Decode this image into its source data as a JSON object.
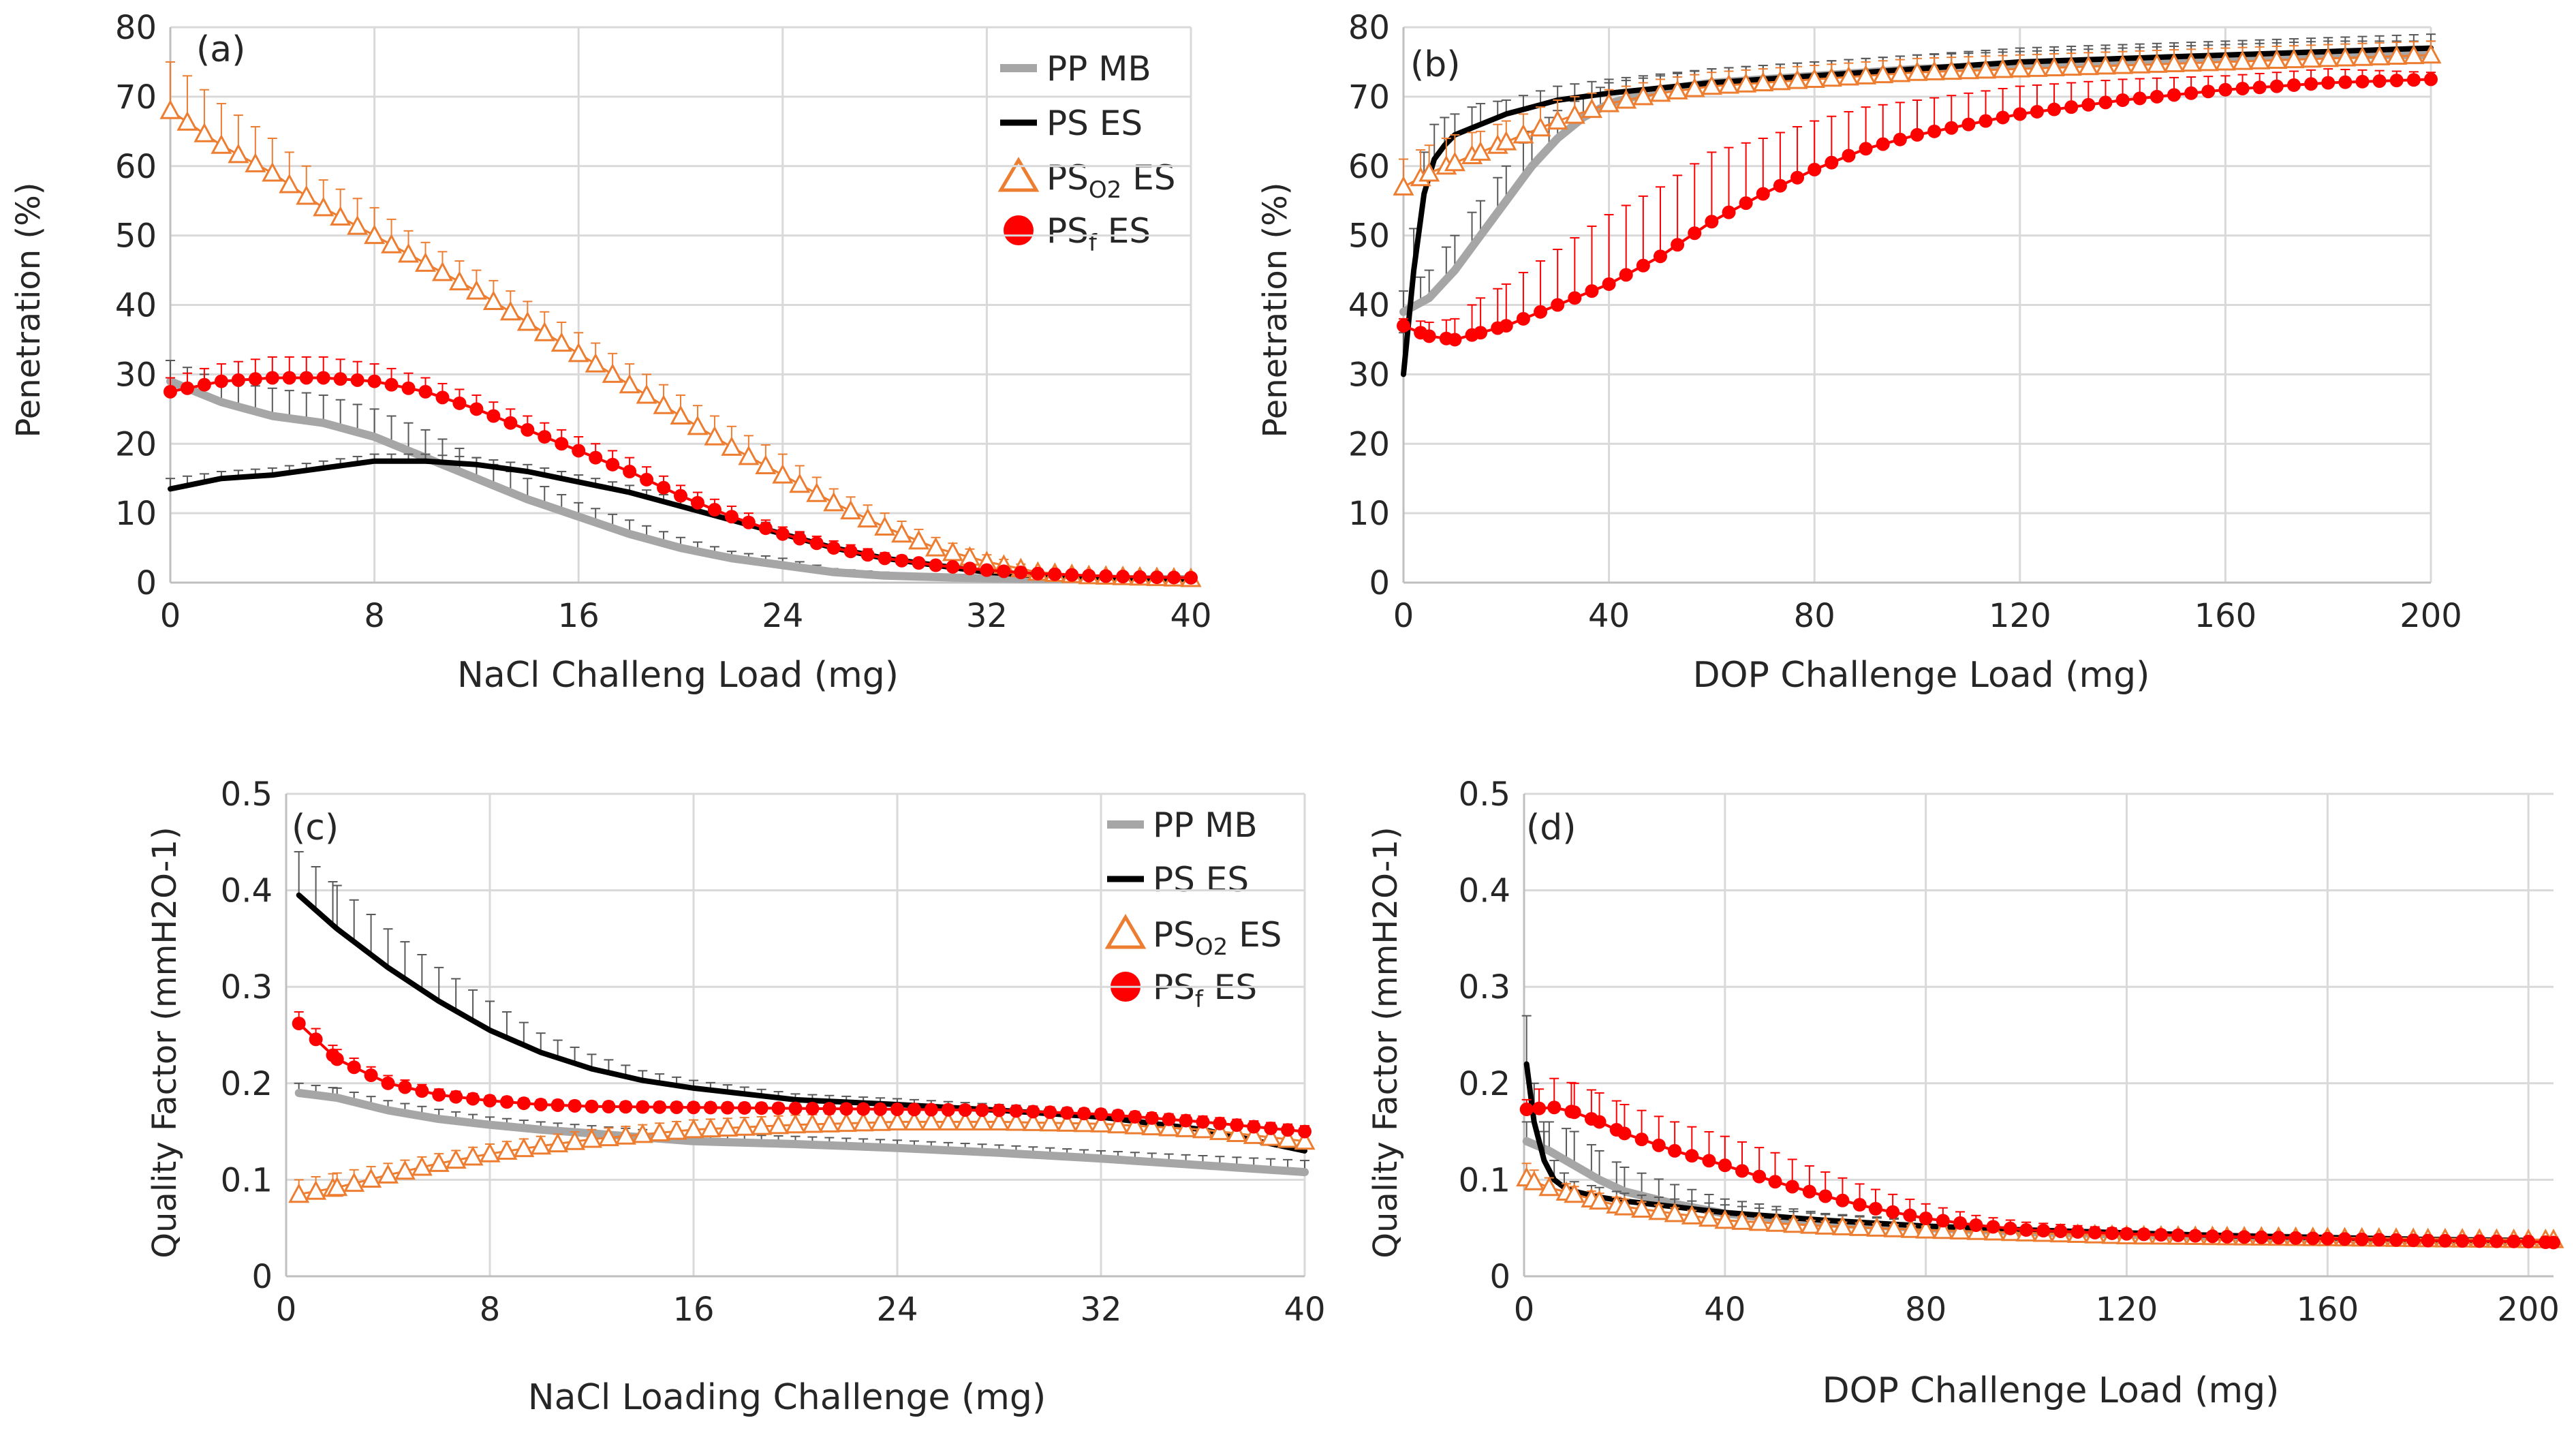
{
  "colors": {
    "pp_mb": "#a6a6a6",
    "ps_es": "#000000",
    "ps_o2_es": "#ed7d31",
    "ps_f_es": "#ff0000",
    "grid": "#d9d9d9",
    "error_bar": "#595959",
    "text": "#262626"
  },
  "legend": {
    "items": [
      {
        "key": "pp_mb",
        "main": "PP MB",
        "sub": "",
        "rest": "",
        "marker": "line-thick"
      },
      {
        "key": "ps_es",
        "main": "PS ES",
        "sub": "",
        "rest": "",
        "marker": "line"
      },
      {
        "key": "ps_o2_es",
        "main": "PS",
        "sub": "O2",
        "rest": " ES",
        "marker": "triangle"
      },
      {
        "key": "ps_f_es",
        "main": "PS",
        "sub": "f",
        "rest": " ES",
        "marker": "circle"
      }
    ]
  },
  "chart_data": [
    {
      "type": "line",
      "panel": "(a)",
      "xlabel": "NaCl Challeng Load (mg)",
      "ylabel": "Penetration (%)",
      "xlim": [
        0,
        40
      ],
      "ylim": [
        0,
        80
      ],
      "xticks": [
        0,
        8,
        16,
        24,
        32,
        40
      ],
      "yticks": [
        0,
        10,
        20,
        30,
        40,
        50,
        60,
        70,
        80
      ],
      "grid": true,
      "legend_position": "top-right",
      "series": [
        {
          "key": "pp_mb",
          "name": "PP MB",
          "x": [
            0,
            2,
            4,
            6,
            8,
            10,
            12,
            14,
            16,
            18,
            20,
            22,
            24,
            26,
            28,
            30,
            32,
            34,
            36,
            38,
            40
          ],
          "y": [
            29,
            26,
            24,
            23,
            21,
            18,
            15,
            12,
            9.5,
            7,
            5,
            3.5,
            2.5,
            1.5,
            1,
            0.8,
            0.6,
            0.5,
            0.5,
            0.5,
            0.5
          ],
          "err": [
            3,
            3,
            4,
            4,
            4,
            4,
            3,
            3,
            2,
            2,
            1.5,
            1,
            1,
            0.5,
            0.5,
            0.3,
            0.2,
            0.2,
            0.2,
            0.2,
            0.2
          ]
        },
        {
          "key": "ps_es",
          "name": "PS ES",
          "x": [
            0,
            2,
            4,
            6,
            8,
            10,
            12,
            14,
            16,
            18,
            20,
            22,
            24,
            26,
            28,
            30,
            32,
            34,
            36,
            38,
            40
          ],
          "y": [
            13.5,
            15,
            15.5,
            16.5,
            17.5,
            17.5,
            17,
            16,
            14.5,
            13,
            11,
            9,
            7,
            5,
            3.5,
            2.5,
            1.5,
            1,
            0.8,
            0.6,
            0.5
          ],
          "err": [
            1.5,
            1,
            1,
            1,
            1,
            1,
            1,
            1,
            1,
            1,
            1,
            1,
            1,
            0.5,
            0.5,
            0.5,
            0.3,
            0.2,
            0.2,
            0.2,
            0.2
          ]
        },
        {
          "key": "ps_o2_es",
          "name": "PS O2 ES",
          "x": [
            0,
            2,
            4,
            6,
            8,
            10,
            12,
            14,
            16,
            18,
            20,
            22,
            24,
            26,
            28,
            30,
            32,
            34,
            36,
            38,
            40
          ],
          "y": [
            68,
            63,
            59,
            54,
            50,
            46,
            42,
            37.5,
            33,
            28.5,
            24,
            19.5,
            15.5,
            11.5,
            8,
            5,
            3,
            1.5,
            1,
            0.8,
            0.6
          ],
          "err": [
            7,
            6,
            5,
            4,
            4,
            3,
            3,
            3,
            3,
            3,
            3,
            3,
            3,
            2,
            2,
            1.5,
            1,
            0.5,
            0.5,
            0.3,
            0.3
          ]
        },
        {
          "key": "ps_f_es",
          "name": "PS f ES",
          "x": [
            0,
            2,
            4,
            6,
            8,
            10,
            12,
            14,
            16,
            18,
            20,
            22,
            24,
            26,
            28,
            30,
            32,
            34,
            36,
            38,
            40
          ],
          "y": [
            27.5,
            29,
            29.5,
            29.5,
            29,
            27.5,
            25,
            22,
            19,
            16,
            12.5,
            9.5,
            7,
            5,
            3.5,
            2.5,
            1.8,
            1.3,
            1,
            0.8,
            0.7
          ],
          "err": [
            2,
            2.5,
            3,
            3,
            2.5,
            2,
            2,
            2,
            2,
            2,
            1.5,
            1.5,
            1,
            1,
            0.8,
            0.5,
            0.3,
            0.3,
            0.2,
            0.2,
            0.2
          ]
        }
      ]
    },
    {
      "type": "line",
      "panel": "(b)",
      "xlabel": "DOP Challenge Load (mg)",
      "ylabel": "Penetration (%)",
      "xlim": [
        0,
        200
      ],
      "ylim": [
        0,
        80
      ],
      "xticks": [
        0,
        40,
        80,
        120,
        160,
        200
      ],
      "yticks": [
        0,
        10,
        20,
        30,
        40,
        50,
        60,
        70,
        80
      ],
      "grid": true,
      "legend_position": "none",
      "series": [
        {
          "key": "pp_mb",
          "name": "PP MB",
          "x": [
            0,
            5,
            10,
            15,
            20,
            25,
            30,
            35,
            40,
            50,
            60,
            80,
            100,
            120,
            140,
            160,
            180,
            200
          ],
          "y": [
            39,
            41,
            45,
            50,
            55,
            60,
            64,
            67,
            69,
            71,
            72,
            73,
            74,
            74.5,
            75,
            75.5,
            76,
            76
          ],
          "err": [
            3,
            4,
            5,
            5,
            5,
            5,
            4,
            3,
            3,
            2,
            2,
            2,
            2,
            2,
            2,
            2,
            2,
            2
          ]
        },
        {
          "key": "ps_es",
          "name": "PS ES",
          "x": [
            0,
            2,
            4,
            6,
            8,
            10,
            15,
            20,
            30,
            40,
            60,
            80,
            100,
            120,
            140,
            160,
            180,
            200
          ],
          "y": [
            30,
            45,
            56,
            61,
            63,
            64.5,
            66,
            67.5,
            69.5,
            70.5,
            72,
            73,
            74,
            75,
            75.5,
            76,
            76.5,
            77
          ],
          "err": [
            6,
            6,
            6,
            5,
            4,
            3,
            3,
            2,
            2,
            2,
            2,
            2,
            2,
            2,
            2,
            2,
            2,
            2
          ]
        },
        {
          "key": "ps_o2_es",
          "name": "PS O2 ES",
          "x": [
            0,
            5,
            10,
            15,
            20,
            30,
            40,
            50,
            60,
            80,
            100,
            120,
            140,
            160,
            180,
            200
          ],
          "y": [
            57,
            59,
            60.5,
            62,
            63.5,
            66.5,
            69,
            70.5,
            71.5,
            72.5,
            73.5,
            74,
            74.5,
            75,
            75.5,
            76
          ],
          "err": [
            4,
            4,
            4,
            3,
            3,
            3,
            2,
            2,
            2,
            2,
            2,
            2,
            2,
            2,
            2,
            2
          ]
        },
        {
          "key": "ps_f_es",
          "name": "PS f ES",
          "x": [
            0,
            5,
            10,
            15,
            20,
            30,
            40,
            50,
            60,
            70,
            80,
            90,
            100,
            120,
            140,
            160,
            180,
            200
          ],
          "y": [
            37,
            35.5,
            35,
            36,
            37,
            40,
            43,
            47,
            52,
            56,
            59.5,
            62.5,
            64.5,
            67.5,
            69.5,
            71,
            72,
            72.5
          ],
          "err": [
            1,
            2,
            3,
            5,
            6,
            8,
            10,
            10,
            10,
            8,
            7,
            6,
            5,
            4,
            3,
            2,
            2,
            1
          ]
        }
      ]
    },
    {
      "type": "line",
      "panel": "(c)",
      "xlabel": "NaCl Loading Challenge (mg)",
      "ylabel": "Quality Factor (mmH2O-1)",
      "xlim": [
        0,
        40
      ],
      "ylim": [
        0,
        0.5
      ],
      "xticks": [
        0,
        8,
        16,
        24,
        32,
        40
      ],
      "yticks": [
        0,
        0.1,
        0.2,
        0.3,
        0.4,
        0.5
      ],
      "grid": true,
      "legend_position": "top-right",
      "series": [
        {
          "key": "pp_mb",
          "name": "PP MB",
          "x": [
            0.5,
            2,
            4,
            6,
            8,
            10,
            12,
            16,
            20,
            24,
            28,
            32,
            36,
            40
          ],
          "y": [
            0.19,
            0.185,
            0.172,
            0.163,
            0.157,
            0.152,
            0.148,
            0.14,
            0.137,
            0.133,
            0.128,
            0.122,
            0.115,
            0.108
          ],
          "err": [
            0.01,
            0.01,
            0.01,
            0.01,
            0.008,
            0.008,
            0.008,
            0.008,
            0.008,
            0.008,
            0.008,
            0.008,
            0.01,
            0.012
          ]
        },
        {
          "key": "ps_es",
          "name": "PS ES",
          "x": [
            0.5,
            2,
            4,
            6,
            8,
            10,
            12,
            14,
            16,
            20,
            24,
            28,
            32,
            36,
            40
          ],
          "y": [
            0.395,
            0.36,
            0.32,
            0.285,
            0.255,
            0.232,
            0.215,
            0.203,
            0.195,
            0.183,
            0.178,
            0.172,
            0.165,
            0.152,
            0.13
          ],
          "err": [
            0.045,
            0.045,
            0.04,
            0.035,
            0.03,
            0.02,
            0.015,
            0.01,
            0.008,
            0.006,
            0.006,
            0.006,
            0.008,
            0.01,
            0.02
          ]
        },
        {
          "key": "ps_o2_es",
          "name": "PS O2 ES",
          "x": [
            0.5,
            2,
            4,
            6,
            8,
            10,
            12,
            16,
            20,
            24,
            28,
            32,
            36,
            40
          ],
          "y": [
            0.085,
            0.092,
            0.105,
            0.117,
            0.127,
            0.135,
            0.142,
            0.152,
            0.157,
            0.16,
            0.16,
            0.158,
            0.152,
            0.14
          ],
          "err": [
            0.015,
            0.015,
            0.012,
            0.01,
            0.01,
            0.01,
            0.01,
            0.01,
            0.01,
            0.01,
            0.01,
            0.01,
            0.012,
            0.015
          ]
        },
        {
          "key": "ps_f_es",
          "name": "PS f ES",
          "x": [
            0.5,
            2,
            4,
            6,
            8,
            10,
            12,
            16,
            20,
            24,
            28,
            32,
            36,
            40
          ],
          "y": [
            0.262,
            0.225,
            0.2,
            0.188,
            0.182,
            0.178,
            0.176,
            0.175,
            0.174,
            0.173,
            0.172,
            0.168,
            0.16,
            0.15
          ],
          "err": [
            0.012,
            0.01,
            0.008,
            0.006,
            0.005,
            0.005,
            0.005,
            0.005,
            0.005,
            0.005,
            0.005,
            0.005,
            0.006,
            0.006
          ]
        }
      ]
    },
    {
      "type": "line",
      "panel": "(d)",
      "xlabel": "DOP Challenge Load (mg)",
      "ylabel": "Quality Factor (mmH2O-1)",
      "xlim": [
        0,
        205
      ],
      "ylim": [
        0,
        0.5
      ],
      "xticks": [
        0,
        40,
        80,
        120,
        160,
        200
      ],
      "yticks": [
        0,
        0.1,
        0.2,
        0.3,
        0.4,
        0.5
      ],
      "grid": true,
      "legend_position": "none",
      "series": [
        {
          "key": "pp_mb",
          "name": "PP MB",
          "x": [
            0.5,
            5,
            10,
            15,
            20,
            30,
            40,
            60,
            80,
            100,
            120,
            140,
            160,
            180,
            200
          ],
          "y": [
            0.14,
            0.13,
            0.115,
            0.1,
            0.088,
            0.075,
            0.065,
            0.055,
            0.05,
            0.046,
            0.043,
            0.041,
            0.039,
            0.037,
            0.036
          ],
          "err": [
            0.02,
            0.03,
            0.035,
            0.03,
            0.025,
            0.02,
            0.015,
            0.01,
            0.008,
            0.005,
            0.004,
            0.003,
            0.003,
            0.003,
            0.003
          ]
        },
        {
          "key": "ps_es",
          "name": "PS ES",
          "x": [
            0.5,
            2,
            4,
            6,
            8,
            10,
            15,
            20,
            30,
            40,
            60,
            80,
            100,
            120,
            140,
            160,
            180,
            200
          ],
          "y": [
            0.22,
            0.16,
            0.12,
            0.1,
            0.092,
            0.088,
            0.082,
            0.078,
            0.072,
            0.066,
            0.058,
            0.052,
            0.048,
            0.045,
            0.042,
            0.04,
            0.038,
            0.037
          ],
          "err": [
            0.05,
            0.04,
            0.03,
            0.02,
            0.015,
            0.01,
            0.01,
            0.008,
            0.008,
            0.008,
            0.006,
            0.005,
            0.004,
            0.003,
            0.003,
            0.003,
            0.003,
            0.003
          ]
        },
        {
          "key": "ps_o2_es",
          "name": "PS O2 ES",
          "x": [
            0.5,
            2,
            5,
            10,
            15,
            20,
            30,
            40,
            60,
            80,
            100,
            120,
            140,
            160,
            180,
            200,
            205
          ],
          "y": [
            0.102,
            0.098,
            0.092,
            0.085,
            0.078,
            0.072,
            0.065,
            0.058,
            0.052,
            0.048,
            0.045,
            0.042,
            0.041,
            0.04,
            0.039,
            0.038,
            0.038
          ],
          "err": [
            0.015,
            0.012,
            0.01,
            0.008,
            0.008,
            0.008,
            0.006,
            0.005,
            0.005,
            0.004,
            0.003,
            0.003,
            0.003,
            0.003,
            0.003,
            0.003,
            0.003
          ]
        },
        {
          "key": "ps_f_es",
          "name": "PS f ES",
          "x": [
            0.5,
            3,
            6,
            10,
            15,
            20,
            30,
            40,
            50,
            60,
            70,
            80,
            90,
            100,
            120,
            140,
            160,
            180,
            200,
            205
          ],
          "y": [
            0.173,
            0.174,
            0.175,
            0.17,
            0.16,
            0.148,
            0.13,
            0.115,
            0.098,
            0.083,
            0.07,
            0.06,
            0.053,
            0.048,
            0.044,
            0.041,
            0.039,
            0.037,
            0.036,
            0.035
          ],
          "err": [
            0.01,
            0.02,
            0.03,
            0.03,
            0.03,
            0.03,
            0.03,
            0.03,
            0.03,
            0.025,
            0.02,
            0.015,
            0.01,
            0.008,
            0.005,
            0.004,
            0.003,
            0.003,
            0.003,
            0.003
          ]
        }
      ]
    }
  ]
}
